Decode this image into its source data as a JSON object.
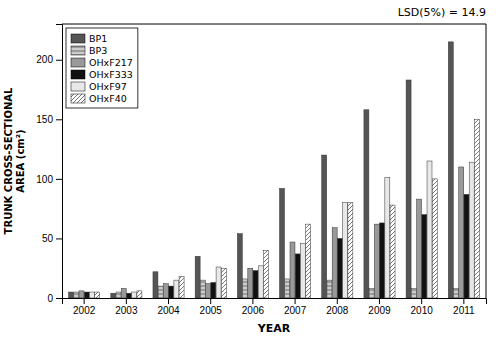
{
  "chart_data": {
    "type": "bar",
    "xlabel": "YEAR",
    "ylabel": "TRUNK CROSS-SECTIONAL\nAREA (cm²)",
    "annotation": "LSD(5%) = 14.9",
    "categories": [
      "2002",
      "2003",
      "2004",
      "2005",
      "2006",
      "2007",
      "2008",
      "2009",
      "2010",
      "2011"
    ],
    "series": [
      {
        "name": "BP1",
        "color": "#555555",
        "values": [
          5,
          4,
          22,
          35,
          54,
          92,
          120,
          158,
          183,
          215
        ]
      },
      {
        "name": "BP3",
        "color": "#cccccc",
        "values": [
          5,
          5,
          10,
          15,
          16,
          16,
          15,
          8,
          8,
          8
        ]
      },
      {
        "name": "OHxF217",
        "color": "#999999",
        "values": [
          6,
          8,
          12,
          12,
          25,
          47,
          59,
          62,
          83,
          110
        ]
      },
      {
        "name": "OHxF333",
        "color": "#111111",
        "values": [
          5,
          4,
          10,
          13,
          23,
          37,
          50,
          63,
          70,
          87
        ]
      },
      {
        "name": "OHxF97",
        "color": "#e8e8e8",
        "values": [
          5,
          5,
          15,
          26,
          27,
          46,
          80,
          101,
          115,
          114
        ]
      },
      {
        "name": "OHxF40",
        "color": "#ffffff",
        "values": [
          5,
          6,
          18,
          25,
          40,
          62,
          80,
          78,
          100,
          150
        ]
      }
    ],
    "ylim": [
      0,
      230
    ],
    "yticks": [
      0,
      50,
      100,
      150,
      200
    ],
    "grid": false,
    "legend": "upper left"
  }
}
